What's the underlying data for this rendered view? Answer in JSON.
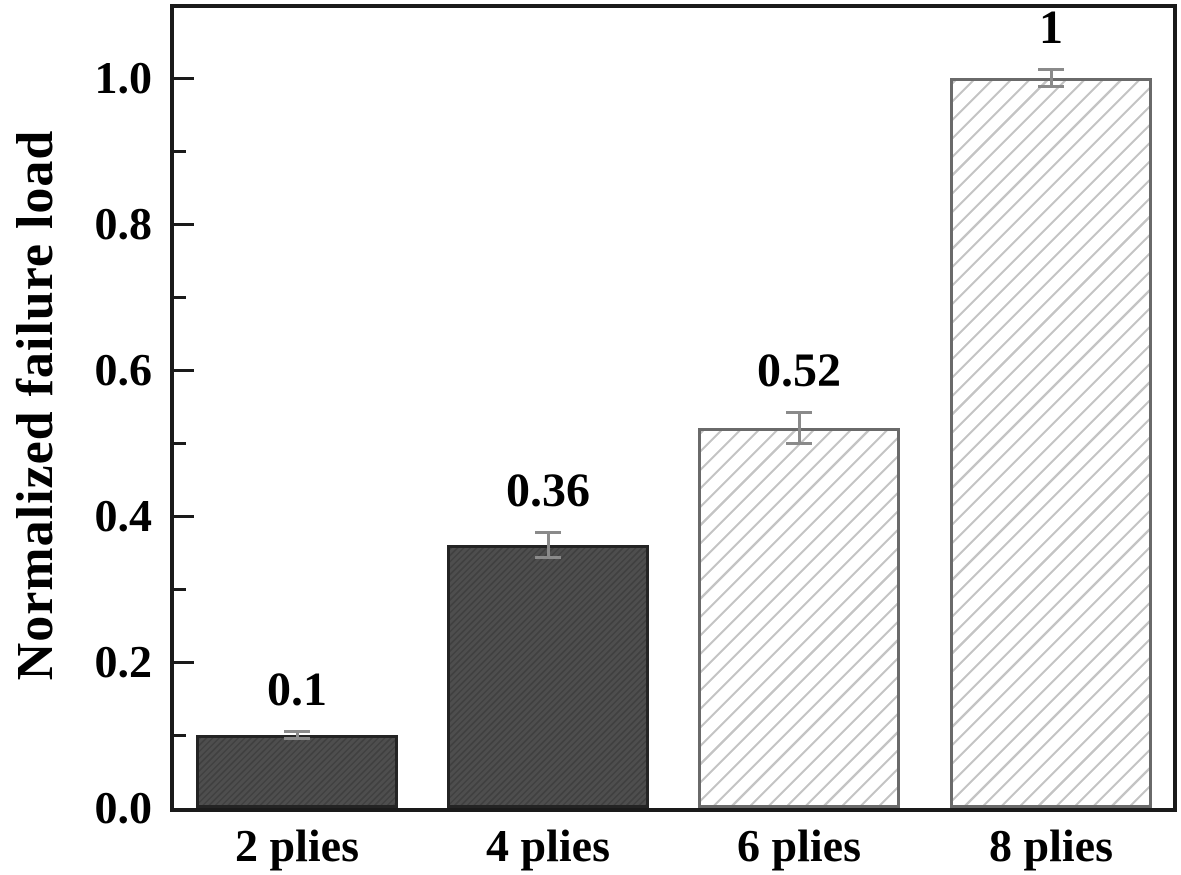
{
  "chart_data": {
    "type": "bar",
    "title": "",
    "xlabel": "",
    "ylabel": "Normalized failure load",
    "categories": [
      "2 plies",
      "4 plies",
      "6 plies",
      "8 plies"
    ],
    "series": [
      {
        "name": "Normalized failure load",
        "values": [
          0.1,
          0.36,
          0.52,
          1
        ],
        "value_labels": [
          "0.1",
          "0.36",
          "0.52",
          "1"
        ],
        "errors": [
          0.005,
          0.018,
          0.022,
          0.012
        ]
      }
    ],
    "bar_styles": [
      "dark",
      "dark",
      "light",
      "light"
    ],
    "hatch_direction": "/",
    "ylim": [
      0,
      1.1
    ],
    "ytick_labels": [
      "0.0",
      "0.2",
      "0.4",
      "0.6",
      "0.8",
      "1.0"
    ],
    "ytick_values": [
      0,
      0.2,
      0.4,
      0.6,
      0.8,
      1.0
    ],
    "minor_tick_values": [
      0.1,
      0.3,
      0.5,
      0.7,
      0.9
    ],
    "grid": false,
    "legend": false,
    "colors": {
      "background": "#ffffff",
      "text": "#000000",
      "axis_frame": "#1a1a1a",
      "dark_bar_fill": "#4e4e4e",
      "dark_bar_hatch": "#404040",
      "dark_bar_border": "#242424",
      "light_bar_fill": "#ffffff",
      "light_bar_hatch": "#c4c4c4",
      "light_bar_border": "#6a6a6a",
      "error_bar": "#8a8a8a"
    }
  }
}
